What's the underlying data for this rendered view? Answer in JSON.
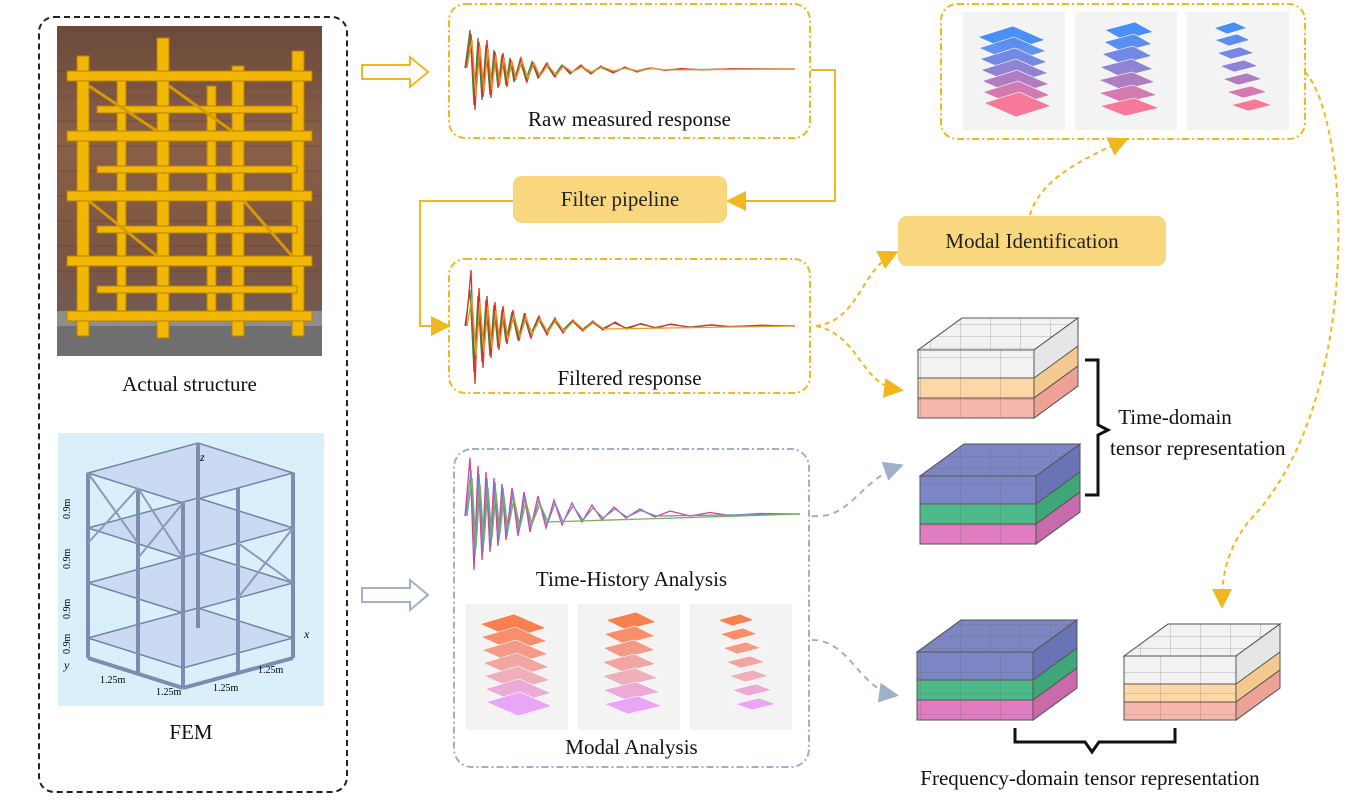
{
  "left_panel": {
    "photo_caption": "Actual structure",
    "fem_caption": "FEM",
    "fem_story_heights": [
      "0.9m",
      "0.9m",
      "0.9m",
      "0.9m"
    ],
    "fem_bay_widths": [
      "1.25m",
      "1.25m",
      "1.25m",
      "1.25m"
    ],
    "fem_axes": {
      "z": "z",
      "x": "x",
      "y": "y"
    }
  },
  "measured": {
    "raw_label": "Raw measured response",
    "filter_label": "Filter pipeline",
    "filtered_label": "Filtered response",
    "modal_id_label": "Modal Identification"
  },
  "simulated": {
    "time_history_label": "Time-History Analysis",
    "modal_analysis_label": "Modal Analysis"
  },
  "tensors": {
    "time_domain_label_line1": "Time-domain",
    "time_domain_label_line2": "tensor representation",
    "frequency_domain_label": "Frequency-domain tensor representation"
  },
  "colors": {
    "measured_accent": "#f0b81e",
    "simulated_accent": "#9fb0c8",
    "pill_fill": "#f9d77e",
    "mode_blue": "#4a8ff5",
    "mode_pink": "#f7799a",
    "mode_orange": "#f8804f",
    "mode_violet": "#e9a6f7",
    "tensor_white": "#f2f2f2",
    "tensor_peach": "#fbd8a6",
    "tensor_salmon": "#f6b7ad",
    "tensor_blue": "#7c86c4",
    "tensor_green": "#4cba8a",
    "tensor_magenta": "#e07cc0"
  }
}
